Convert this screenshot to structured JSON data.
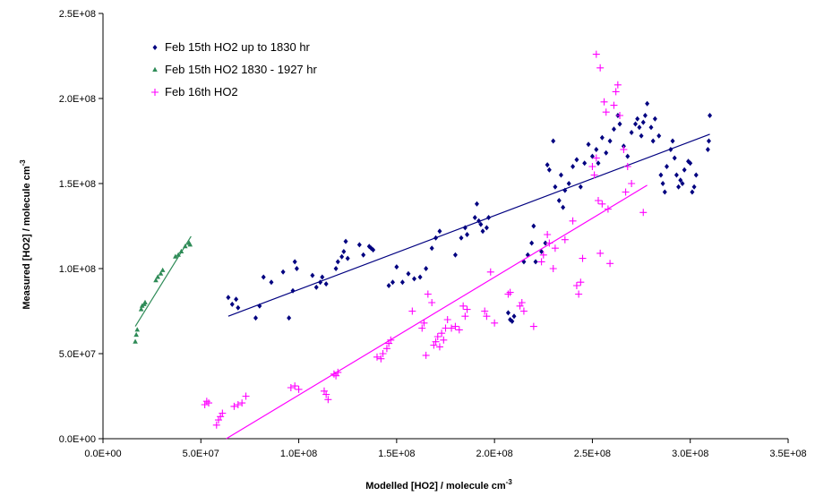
{
  "chart_data": {
    "type": "scatter",
    "title": "",
    "xlabel": "Modelled [HO2] / molecule cm",
    "xlabel_sup": "-3",
    "ylabel": "Measured [HO2] / molecule cm",
    "ylabel_sup": "-3",
    "xlim": [
      0,
      350000000
    ],
    "ylim": [
      0,
      250000000
    ],
    "xticks": [
      0,
      50000000,
      100000000,
      150000000,
      200000000,
      250000000,
      300000000,
      350000000
    ],
    "xtick_labels": [
      "0.0E+00",
      "5.0E+07",
      "1.0E+08",
      "1.5E+08",
      "2.0E+08",
      "2.5E+08",
      "3.0E+08",
      "3.5E+08"
    ],
    "yticks": [
      0,
      50000000,
      100000000,
      150000000,
      200000000,
      250000000
    ],
    "ytick_labels": [
      "0.0E+00",
      "5.0E+07",
      "1.0E+08",
      "1.5E+08",
      "2.0E+08",
      "2.5E+08"
    ],
    "grid": false,
    "legend_position": "top-left",
    "series": [
      {
        "name": "Feb 15th HO2 up to 1830 hr",
        "color": "#000080",
        "marker": "diamond",
        "points": [
          [
            64000000,
            83000000
          ],
          [
            66000000,
            79000000
          ],
          [
            68000000,
            82000000
          ],
          [
            69000000,
            77000000
          ],
          [
            78000000,
            71000000
          ],
          [
            80000000,
            78000000
          ],
          [
            82000000,
            95000000
          ],
          [
            86000000,
            92000000
          ],
          [
            92000000,
            98000000
          ],
          [
            95000000,
            71000000
          ],
          [
            97000000,
            87000000
          ],
          [
            98000000,
            104000000
          ],
          [
            99000000,
            100000000
          ],
          [
            107000000,
            96000000
          ],
          [
            109000000,
            89000000
          ],
          [
            111000000,
            92000000
          ],
          [
            112000000,
            95000000
          ],
          [
            114000000,
            91000000
          ],
          [
            119000000,
            100000000
          ],
          [
            120000000,
            104000000
          ],
          [
            122000000,
            107000000
          ],
          [
            123000000,
            110000000
          ],
          [
            124000000,
            116000000
          ],
          [
            125000000,
            106000000
          ],
          [
            131000000,
            114000000
          ],
          [
            133000000,
            108000000
          ],
          [
            136000000,
            113000000
          ],
          [
            137000000,
            112000000
          ],
          [
            138000000,
            111000000
          ],
          [
            146000000,
            90000000
          ],
          [
            148000000,
            92000000
          ],
          [
            150000000,
            101000000
          ],
          [
            153000000,
            92000000
          ],
          [
            156000000,
            97000000
          ],
          [
            159000000,
            94000000
          ],
          [
            162000000,
            95000000
          ],
          [
            165000000,
            100000000
          ],
          [
            168000000,
            112000000
          ],
          [
            170000000,
            118000000
          ],
          [
            172000000,
            122000000
          ],
          [
            180000000,
            108000000
          ],
          [
            183000000,
            118000000
          ],
          [
            185000000,
            124000000
          ],
          [
            186000000,
            120000000
          ],
          [
            190000000,
            130000000
          ],
          [
            191000000,
            138000000
          ],
          [
            192000000,
            128000000
          ],
          [
            193000000,
            126000000
          ],
          [
            194000000,
            122000000
          ],
          [
            196000000,
            124000000
          ],
          [
            197000000,
            130000000
          ],
          [
            207000000,
            74000000
          ],
          [
            208000000,
            70000000
          ],
          [
            209000000,
            69000000
          ],
          [
            210000000,
            72000000
          ],
          [
            215000000,
            104000000
          ],
          [
            217000000,
            108000000
          ],
          [
            219000000,
            115000000
          ],
          [
            220000000,
            125000000
          ],
          [
            221000000,
            104000000
          ],
          [
            224000000,
            110000000
          ],
          [
            226000000,
            115000000
          ],
          [
            227000000,
            161000000
          ],
          [
            228000000,
            158000000
          ],
          [
            230000000,
            175000000
          ],
          [
            231000000,
            148000000
          ],
          [
            233000000,
            140000000
          ],
          [
            234000000,
            155000000
          ],
          [
            235000000,
            136000000
          ],
          [
            236000000,
            146000000
          ],
          [
            238000000,
            150000000
          ],
          [
            240000000,
            160000000
          ],
          [
            242000000,
            164000000
          ],
          [
            244000000,
            148000000
          ],
          [
            246000000,
            162000000
          ],
          [
            248000000,
            173000000
          ],
          [
            250000000,
            166000000
          ],
          [
            252000000,
            170000000
          ],
          [
            253000000,
            162000000
          ],
          [
            255000000,
            177000000
          ],
          [
            257000000,
            168000000
          ],
          [
            259000000,
            175000000
          ],
          [
            261000000,
            182000000
          ],
          [
            263000000,
            190000000
          ],
          [
            264000000,
            185000000
          ],
          [
            266000000,
            172000000
          ],
          [
            268000000,
            166000000
          ],
          [
            270000000,
            180000000
          ],
          [
            272000000,
            185000000
          ],
          [
            273000000,
            188000000
          ],
          [
            274000000,
            183000000
          ],
          [
            275000000,
            178000000
          ],
          [
            276000000,
            186000000
          ],
          [
            277000000,
            190000000
          ],
          [
            278000000,
            197000000
          ],
          [
            280000000,
            183000000
          ],
          [
            281000000,
            175000000
          ],
          [
            282000000,
            188000000
          ],
          [
            284000000,
            178000000
          ],
          [
            285000000,
            155000000
          ],
          [
            286000000,
            150000000
          ],
          [
            287000000,
            145000000
          ],
          [
            288000000,
            160000000
          ],
          [
            290000000,
            170000000
          ],
          [
            291000000,
            175000000
          ],
          [
            292000000,
            165000000
          ],
          [
            293000000,
            155000000
          ],
          [
            294000000,
            148000000
          ],
          [
            295000000,
            152000000
          ],
          [
            296000000,
            150000000
          ],
          [
            297000000,
            158000000
          ],
          [
            299000000,
            163000000
          ],
          [
            300000000,
            162000000
          ],
          [
            301000000,
            145000000
          ],
          [
            302000000,
            148000000
          ],
          [
            303000000,
            155000000
          ],
          [
            309000000,
            170000000
          ],
          [
            309500000,
            175000000
          ],
          [
            310000000,
            190000000
          ]
        ],
        "trendline": [
          [
            64000000,
            72000000
          ],
          [
            310000000,
            179000000
          ]
        ]
      },
      {
        "name": "Feb 15th HO2 1830 - 1927 hr",
        "color": "#2e8b57",
        "marker": "triangle",
        "points": [
          [
            16500000,
            57000000
          ],
          [
            17000000,
            61000000
          ],
          [
            17500000,
            64000000
          ],
          [
            19500000,
            76000000
          ],
          [
            20000000,
            78000000
          ],
          [
            21000000,
            79000000
          ],
          [
            21500000,
            80000000
          ],
          [
            27000000,
            93000000
          ],
          [
            28000000,
            95000000
          ],
          [
            29500000,
            97000000
          ],
          [
            30500000,
            99000000
          ],
          [
            37000000,
            107000000
          ],
          [
            38500000,
            108000000
          ],
          [
            40000000,
            110000000
          ],
          [
            42000000,
            113000000
          ],
          [
            44000000,
            115000000
          ],
          [
            44500000,
            114000000
          ]
        ],
        "trendline": [
          [
            16500000,
            66000000
          ],
          [
            45000000,
            119000000
          ]
        ]
      },
      {
        "name": "Feb 16th HO2",
        "color": "#ff00ff",
        "marker": "plus",
        "points": [
          [
            52000000,
            20000000
          ],
          [
            53000000,
            22000000
          ],
          [
            54000000,
            21000000
          ],
          [
            58000000,
            8000000
          ],
          [
            59000000,
            11000000
          ],
          [
            60000000,
            13000000
          ],
          [
            61000000,
            15000000
          ],
          [
            67000000,
            19000000
          ],
          [
            69000000,
            20000000
          ],
          [
            71000000,
            21000000
          ],
          [
            73000000,
            25000000
          ],
          [
            96000000,
            30000000
          ],
          [
            98000000,
            31000000
          ],
          [
            100000000,
            29000000
          ],
          [
            113000000,
            28000000
          ],
          [
            114000000,
            26000000
          ],
          [
            115000000,
            23000000
          ],
          [
            118000000,
            38000000
          ],
          [
            119000000,
            37000000
          ],
          [
            120000000,
            39000000
          ],
          [
            140000000,
            48000000
          ],
          [
            142000000,
            47000000
          ],
          [
            143000000,
            50000000
          ],
          [
            145000000,
            53000000
          ],
          [
            146000000,
            56000000
          ],
          [
            147000000,
            58000000
          ],
          [
            158000000,
            75000000
          ],
          [
            163000000,
            65000000
          ],
          [
            164000000,
            68000000
          ],
          [
            165000000,
            49000000
          ],
          [
            166000000,
            85000000
          ],
          [
            168000000,
            80000000
          ],
          [
            169000000,
            55000000
          ],
          [
            170000000,
            57000000
          ],
          [
            171000000,
            60000000
          ],
          [
            172000000,
            54000000
          ],
          [
            173000000,
            62000000
          ],
          [
            174000000,
            58000000
          ],
          [
            175000000,
            65000000
          ],
          [
            176000000,
            70000000
          ],
          [
            178000000,
            65000000
          ],
          [
            180000000,
            66000000
          ],
          [
            182000000,
            64000000
          ],
          [
            184000000,
            78000000
          ],
          [
            185000000,
            72000000
          ],
          [
            186000000,
            76000000
          ],
          [
            195000000,
            75000000
          ],
          [
            196000000,
            72000000
          ],
          [
            198000000,
            98000000
          ],
          [
            200000000,
            68000000
          ],
          [
            207000000,
            85000000
          ],
          [
            208000000,
            86000000
          ],
          [
            213000000,
            78000000
          ],
          [
            214000000,
            80000000
          ],
          [
            215000000,
            75000000
          ],
          [
            220000000,
            66000000
          ],
          [
            224000000,
            104000000
          ],
          [
            225000000,
            108000000
          ],
          [
            227000000,
            120000000
          ],
          [
            228000000,
            115000000
          ],
          [
            230000000,
            100000000
          ],
          [
            231000000,
            112000000
          ],
          [
            236000000,
            117000000
          ],
          [
            240000000,
            128000000
          ],
          [
            242000000,
            90000000
          ],
          [
            243000000,
            85000000
          ],
          [
            244000000,
            92000000
          ],
          [
            245000000,
            106000000
          ],
          [
            250000000,
            160000000
          ],
          [
            251000000,
            155000000
          ],
          [
            252000000,
            165000000
          ],
          [
            253000000,
            140000000
          ],
          [
            254000000,
            109000000
          ],
          [
            255000000,
            138000000
          ],
          [
            256000000,
            198000000
          ],
          [
            257000000,
            192000000
          ],
          [
            258000000,
            135000000
          ],
          [
            259000000,
            103000000
          ],
          [
            261000000,
            196000000
          ],
          [
            262000000,
            204000000
          ],
          [
            263000000,
            208000000
          ],
          [
            264000000,
            190000000
          ],
          [
            266000000,
            170000000
          ],
          [
            267000000,
            145000000
          ],
          [
            268000000,
            160000000
          ],
          [
            270000000,
            150000000
          ],
          [
            276000000,
            133000000
          ],
          [
            252000000,
            226000000
          ],
          [
            254000000,
            218000000
          ]
        ],
        "trendline": [
          [
            63000000,
            0
          ],
          [
            278000000,
            149000000
          ]
        ]
      }
    ]
  }
}
